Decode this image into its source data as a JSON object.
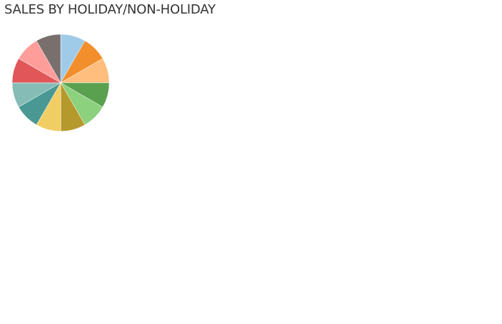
{
  "chart_data": {
    "type": "pie",
    "title": "SALES BY HOLIDAY/NON-HOLIDAY",
    "slices": [
      {
        "value": 1,
        "color": "#a0cbe8"
      },
      {
        "value": 1,
        "color": "#f28e2b"
      },
      {
        "value": 1,
        "color": "#ffbe7d"
      },
      {
        "value": 1,
        "color": "#59a14f"
      },
      {
        "value": 1,
        "color": "#8cd17d"
      },
      {
        "value": 1,
        "color": "#b6992d"
      },
      {
        "value": 1,
        "color": "#f1ce63"
      },
      {
        "value": 1,
        "color": "#499894"
      },
      {
        "value": 1,
        "color": "#86bcb6"
      },
      {
        "value": 1,
        "color": "#e15759"
      },
      {
        "value": 1,
        "color": "#ff9d9a"
      },
      {
        "value": 1,
        "color": "#79706e"
      }
    ],
    "legend": "none",
    "labels_shown": false
  }
}
